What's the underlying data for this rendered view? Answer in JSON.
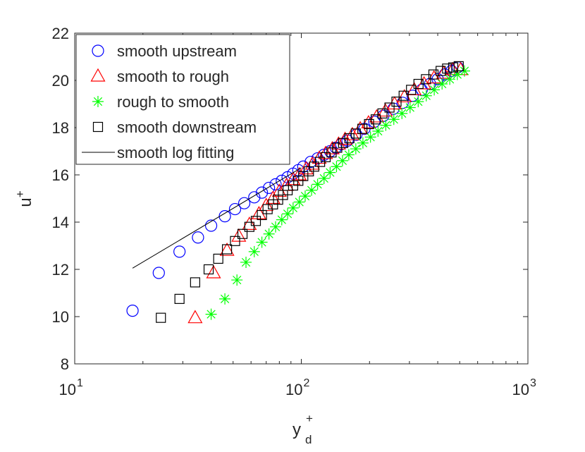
{
  "chart_data": {
    "type": "scatter",
    "xscale": "log",
    "xlim": [
      10,
      1000
    ],
    "ylim": [
      8,
      22
    ],
    "xlabel": "y",
    "xlabel_sup": "+",
    "xlabel_sub": "d",
    "ylabel": "u",
    "ylabel_sup": "+",
    "xticks": [
      {
        "value": 10,
        "base": "10",
        "exp": "1"
      },
      {
        "value": 100,
        "base": "10",
        "exp": "2"
      },
      {
        "value": 1000,
        "base": "10",
        "exp": "3"
      }
    ],
    "yticks": [
      "8",
      "10",
      "12",
      "14",
      "16",
      "18",
      "20",
      "22"
    ],
    "legend_position": "top-left",
    "series": [
      {
        "name": "smooth upstream",
        "marker": "circle",
        "color": "#0000ff",
        "x": [
          18,
          23.5,
          29,
          35,
          40,
          46,
          51,
          56,
          62,
          67,
          72,
          77,
          82,
          87,
          92,
          97,
          102,
          110,
          118,
          126,
          134,
          142,
          150,
          160,
          175,
          190,
          210,
          230,
          255,
          280,
          310,
          340,
          370,
          400,
          430,
          460,
          490
        ],
        "y": [
          10.25,
          11.85,
          12.75,
          13.35,
          13.85,
          14.25,
          14.55,
          14.8,
          15.05,
          15.25,
          15.45,
          15.6,
          15.75,
          15.9,
          16.05,
          16.2,
          16.35,
          16.55,
          16.7,
          16.85,
          17.0,
          17.15,
          17.3,
          17.45,
          17.7,
          17.95,
          18.25,
          18.5,
          18.8,
          19.05,
          19.35,
          19.6,
          19.85,
          20.05,
          20.25,
          20.4,
          20.55
        ]
      },
      {
        "name": "smooth to rough",
        "marker": "triangle",
        "color": "#ff0000",
        "x": [
          34,
          41,
          47,
          53,
          59,
          65,
          70,
          75,
          80,
          86,
          92,
          98,
          105,
          112,
          120,
          128,
          137,
          146,
          156,
          168,
          182,
          198,
          215,
          235,
          258,
          285,
          315,
          348,
          385,
          425,
          465,
          505
        ],
        "y": [
          9.95,
          11.85,
          12.8,
          13.4,
          13.9,
          14.35,
          14.7,
          15.0,
          15.3,
          15.55,
          15.8,
          16.0,
          16.25,
          16.45,
          16.7,
          16.9,
          17.1,
          17.3,
          17.5,
          17.7,
          17.95,
          18.2,
          18.45,
          18.7,
          19.0,
          19.3,
          19.6,
          19.85,
          20.1,
          20.3,
          20.45,
          20.45
        ]
      },
      {
        "name": "rough to smooth",
        "marker": "star",
        "color": "#00ff00",
        "x": [
          40,
          46,
          52,
          57,
          62,
          67,
          72,
          77,
          82,
          87,
          92,
          98,
          104,
          111,
          118,
          126,
          134,
          143,
          152,
          162,
          174,
          187,
          202,
          218,
          236,
          256,
          278,
          302,
          328,
          356,
          386,
          418,
          452,
          488,
          525
        ],
        "y": [
          10.1,
          10.75,
          11.55,
          12.3,
          12.75,
          13.15,
          13.5,
          13.8,
          14.1,
          14.35,
          14.6,
          14.85,
          15.1,
          15.35,
          15.6,
          15.85,
          16.1,
          16.35,
          16.6,
          16.85,
          17.1,
          17.35,
          17.6,
          17.85,
          18.1,
          18.35,
          18.6,
          18.85,
          19.1,
          19.35,
          19.6,
          19.85,
          20.05,
          20.25,
          20.4
        ]
      },
      {
        "name": "smooth downstream",
        "marker": "square",
        "color": "#000000",
        "x": [
          24,
          29,
          34,
          39,
          43,
          47,
          51,
          55,
          59,
          63,
          67,
          71,
          75,
          79,
          83,
          87,
          92,
          97,
          102,
          108,
          114,
          121,
          128,
          136,
          144,
          153,
          163,
          174,
          186,
          199,
          213,
          228,
          245,
          263,
          283,
          305,
          329,
          355,
          383,
          412,
          440,
          468,
          495
        ],
        "y": [
          9.95,
          10.75,
          11.45,
          12.0,
          12.45,
          12.85,
          13.2,
          13.5,
          13.8,
          14.05,
          14.3,
          14.55,
          14.75,
          14.95,
          15.15,
          15.35,
          15.55,
          15.75,
          15.95,
          16.15,
          16.35,
          16.55,
          16.75,
          16.95,
          17.15,
          17.35,
          17.55,
          17.75,
          17.95,
          18.15,
          18.35,
          18.6,
          18.85,
          19.1,
          19.35,
          19.6,
          19.85,
          20.05,
          20.25,
          20.4,
          20.5,
          20.55,
          20.6
        ]
      },
      {
        "name": "smooth log fitting",
        "marker": "line",
        "color": "#000000",
        "x": [
          18,
          100
        ],
        "y": [
          12.05,
          16.3
        ]
      }
    ]
  }
}
